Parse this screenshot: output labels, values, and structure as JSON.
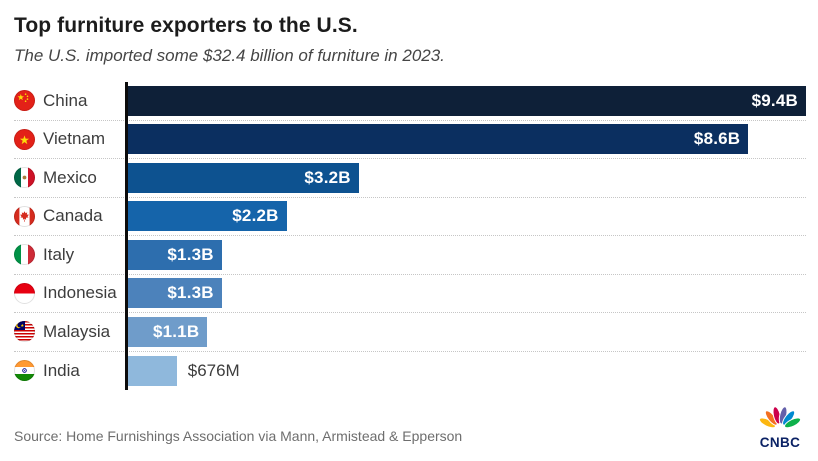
{
  "header": {
    "title": "Top furniture exporters to the U.S.",
    "subtitle": "The U.S. imported some $32.4 billion of furniture in 2023."
  },
  "chart_data": {
    "type": "bar",
    "orientation": "horizontal",
    "title": "Top furniture exporters to the U.S.",
    "subtitle": "The U.S. imported some $32.4 billion of furniture in 2023.",
    "unit": "USD",
    "xlim": [
      0,
      9.4
    ],
    "grid": false,
    "legend": "none",
    "categories": [
      "China",
      "Vietnam",
      "Mexico",
      "Canada",
      "Italy",
      "Indonesia",
      "Malaysia",
      "India"
    ],
    "values_billions": [
      9.4,
      8.6,
      3.2,
      2.2,
      1.3,
      1.3,
      1.1,
      0.676
    ],
    "value_labels": [
      "$9.4B",
      "$8.6B",
      "$3.2B",
      "$2.2B",
      "$1.3B",
      "$1.3B",
      "$1.1B",
      "$676M"
    ],
    "bar_colors": [
      "#0e2038",
      "#0b2f60",
      "#0d5290",
      "#1564aa",
      "#2d6eae",
      "#4c82bb",
      "#6f9cca",
      "#8fb8dc"
    ],
    "flags": [
      "china",
      "vietnam",
      "mexico",
      "canada",
      "italy",
      "indonesia",
      "malaysia",
      "india"
    ],
    "label_inside": [
      true,
      true,
      true,
      true,
      true,
      true,
      true,
      false
    ]
  },
  "footer": {
    "source": "Source: Home Furnishings Association via Mann, Armistead & Epperson",
    "logo_text": "CNBC"
  },
  "colors": {
    "axis": "#0c0c0c",
    "separator": "#c6c6c6",
    "value_label_inside": "#ffffff",
    "value_label_outside": "#3d3d3d",
    "peacock": [
      "#fcb711",
      "#f37021",
      "#cc004c",
      "#6460aa",
      "#0089d0",
      "#0db14b"
    ]
  }
}
